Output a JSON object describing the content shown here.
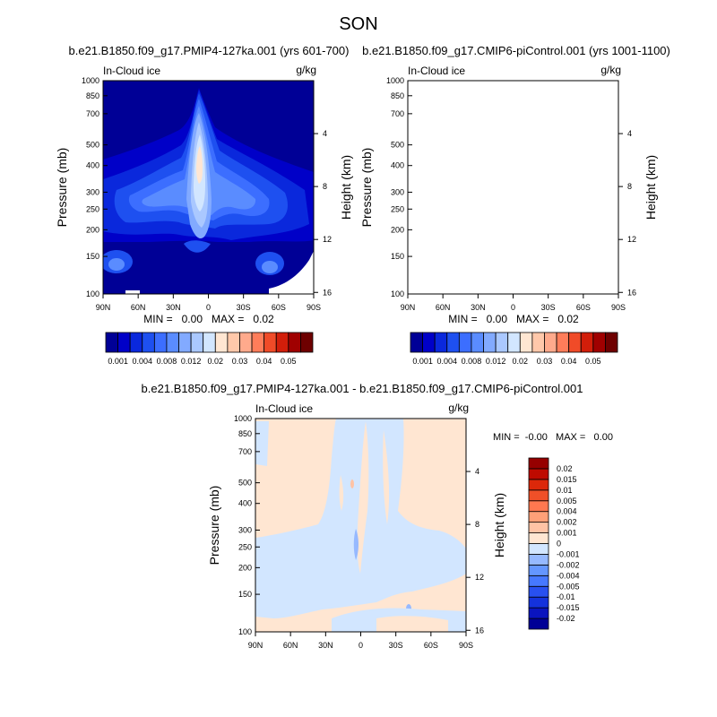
{
  "page": {
    "title": "SON",
    "diff_title": "b.e21.B1850.f09_g17.PMIP4-127ka.001 - b.e21.B1850.f09_g17.CMIP6-piControl.001"
  },
  "colors": {
    "field_levels": [
      "#000096",
      "#0000c8",
      "#0a28dc",
      "#1e50f0",
      "#3c6eff",
      "#5a8cff",
      "#82aaff",
      "#aac8ff",
      "#d2e6ff",
      "#ffe6d2",
      "#ffc8aa",
      "#ffaa8c",
      "#ff7d5a",
      "#f04b28",
      "#d21e0a",
      "#a00000",
      "#6e0000"
    ],
    "diff_levels": [
      "#000096",
      "#0a14be",
      "#1432dc",
      "#2850f0",
      "#4678ff",
      "#6496ff",
      "#96b9ff",
      "#d2e6ff",
      "#ffe6d2",
      "#ffc3a5",
      "#ffa078",
      "#ff7850",
      "#f05028",
      "#dc280a",
      "#be0a00",
      "#960000"
    ]
  },
  "chart_data": [
    {
      "type": "heatmap",
      "id": "panel-left",
      "title": "b.e21.B1850.f09_g17.PMIP4-127ka.001 (yrs 601-700)",
      "variable": "In-Cloud ice",
      "units": "g/kg",
      "xlabel": "",
      "ylabel": "Pressure (mb)",
      "y2label": "Height (km)",
      "x_ticks": [
        "90N",
        "60N",
        "30N",
        "0",
        "30S",
        "60S",
        "90S"
      ],
      "y_ticks": [
        100,
        150,
        200,
        250,
        300,
        400,
        500,
        700,
        850,
        1000
      ],
      "y2_ticks": [
        4,
        8,
        12,
        16
      ],
      "ylim": [
        1000,
        100
      ],
      "stats": "MIN =   0.00   MAX =   0.02",
      "colorbar_labels": [
        "0.001",
        "0.004",
        "0.008",
        "0.012",
        "0.02",
        "0.03",
        "0.04",
        "0.05"
      ],
      "colorbar_levels": [
        0.001,
        0.002,
        0.004,
        0.006,
        0.008,
        0.01,
        0.012,
        0.015,
        0.02,
        0.025,
        0.03,
        0.035,
        0.04,
        0.045,
        0.05
      ]
    },
    {
      "type": "heatmap",
      "id": "panel-right",
      "title": "b.e21.B1850.f09_g17.CMIP6-piControl.001 (yrs 1001-1100)",
      "variable": "In-Cloud ice",
      "units": "g/kg",
      "xlabel": "",
      "ylabel": "Pressure (mb)",
      "y2label": "Height (km)",
      "x_ticks": [
        "90N",
        "60N",
        "30N",
        "0",
        "30S",
        "60S",
        "90S"
      ],
      "y_ticks": [
        100,
        150,
        200,
        250,
        300,
        400,
        500,
        700,
        850,
        1000
      ],
      "y2_ticks": [
        4,
        8,
        12,
        16
      ],
      "ylim": [
        1000,
        100
      ],
      "stats": "MIN =   0.00   MAX =   0.02",
      "colorbar_labels": [
        "0.001",
        "0.004",
        "0.008",
        "0.012",
        "0.02",
        "0.03",
        "0.04",
        "0.05"
      ],
      "colorbar_levels": [
        0.001,
        0.002,
        0.004,
        0.006,
        0.008,
        0.01,
        0.012,
        0.015,
        0.02,
        0.025,
        0.03,
        0.035,
        0.04,
        0.045,
        0.05
      ]
    },
    {
      "type": "heatmap",
      "id": "panel-diff",
      "title": "b.e21.B1850.f09_g17.PMIP4-127ka.001 - b.e21.B1850.f09_g17.CMIP6-piControl.001",
      "variable": "In-Cloud ice",
      "units": "g/kg",
      "xlabel": "",
      "ylabel": "Pressure (mb)",
      "y2label": "Height (km)",
      "x_ticks": [
        "90N",
        "60N",
        "30N",
        "0",
        "30S",
        "60S",
        "90S"
      ],
      "y_ticks": [
        100,
        150,
        200,
        250,
        300,
        400,
        500,
        700,
        850,
        1000
      ],
      "y2_ticks": [
        4,
        8,
        12,
        16
      ],
      "ylim": [
        1000,
        100
      ],
      "stats": "MIN =  -0.00   MAX =   0.00",
      "colorbar_labels": [
        "0.02",
        "0.015",
        "0.01",
        "0.005",
        "0.004",
        "0.002",
        "0.001",
        "0",
        "-0.001",
        "-0.002",
        "-0.004",
        "-0.005",
        "-0.01",
        "-0.015",
        "-0.02"
      ]
    }
  ]
}
